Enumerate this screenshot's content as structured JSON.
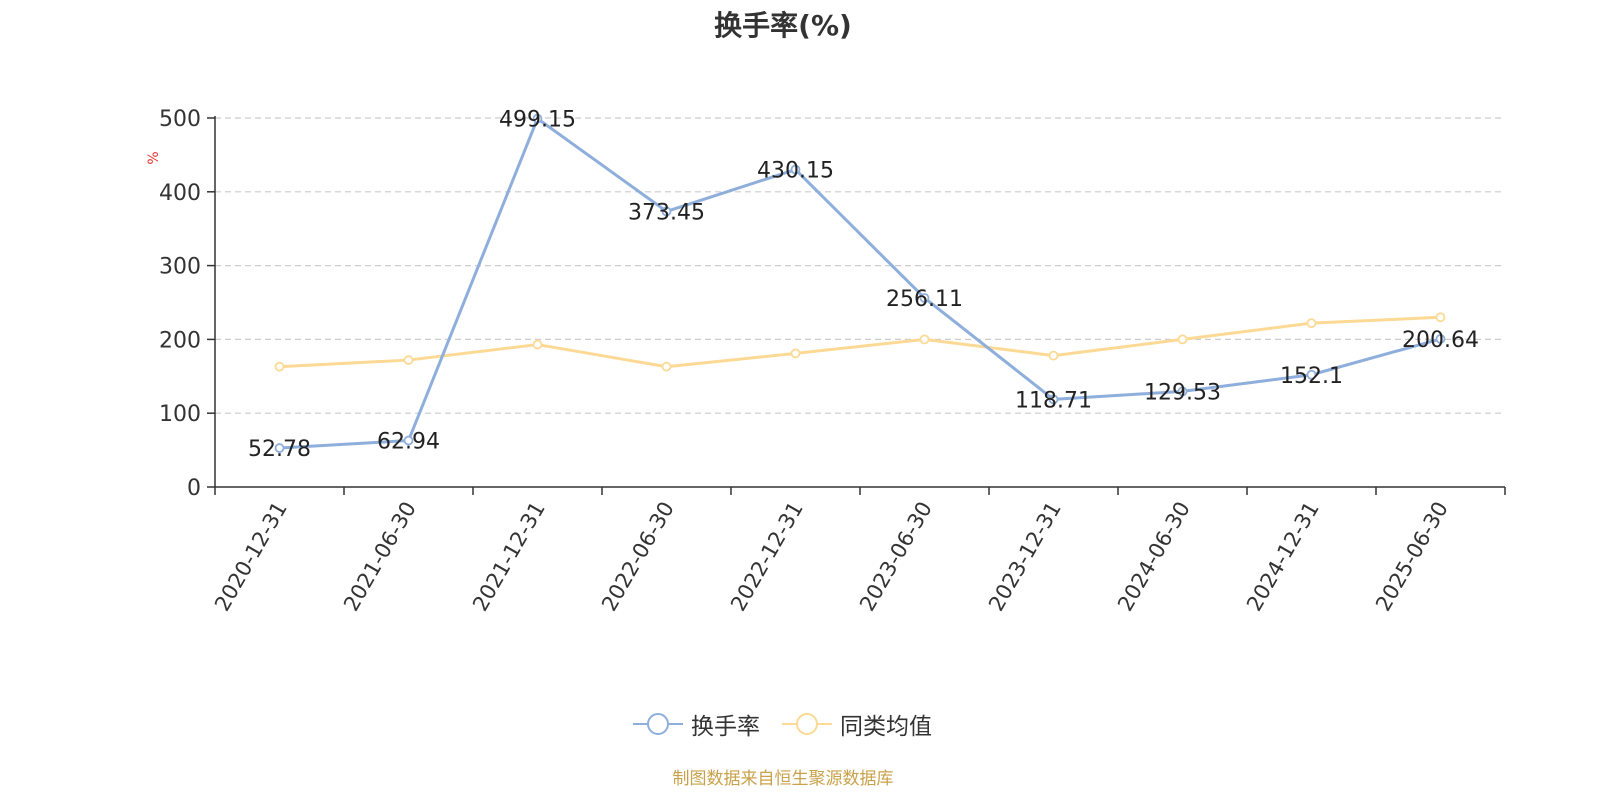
{
  "chart_data": {
    "type": "line",
    "title": "换手率(%)",
    "ylabel": "%",
    "xlabel": "",
    "ylim": [
      0,
      500
    ],
    "yticks": [
      0,
      100,
      200,
      300,
      400,
      500
    ],
    "grid": true,
    "legend_position": "bottom",
    "categories": [
      "2020-12-31",
      "2021-06-30",
      "2021-12-31",
      "2022-06-30",
      "2022-12-31",
      "2023-06-30",
      "2023-12-31",
      "2024-06-30",
      "2024-12-31",
      "2025-06-30"
    ],
    "series": [
      {
        "name": "换手率",
        "color": "#8eaedb",
        "values": [
          52.78,
          62.94,
          499.15,
          373.45,
          430.15,
          256.11,
          118.71,
          129.53,
          152.1,
          200.64
        ],
        "labels": [
          "52.78",
          "62.94",
          "499.15",
          "373.45",
          "430.15",
          "256.11",
          "118.71",
          "129.53",
          "152.1",
          "200.64"
        ]
      },
      {
        "name": "同类均值",
        "color": "#fcd995",
        "values": [
          163,
          172,
          193,
          163,
          181,
          200,
          178,
          200,
          222,
          230
        ]
      }
    ]
  },
  "footer": {
    "source": "制图数据来自恒生聚源数据库"
  }
}
